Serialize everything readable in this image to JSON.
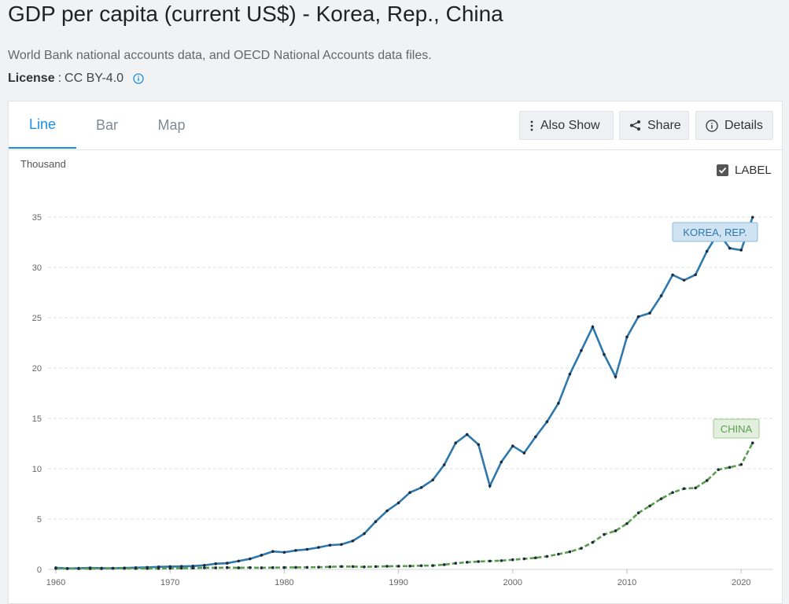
{
  "header": {
    "title": "GDP per capita (current US$) - Korea, Rep., China",
    "source": "World Bank national accounts data, and OECD National Accounts data files.",
    "license_label": "License",
    "license_sep": " : ",
    "license_value": "CC BY-4.0",
    "info_icon": "info-icon"
  },
  "tabs": [
    {
      "label": "Line",
      "active": true
    },
    {
      "label": "Bar",
      "active": false
    },
    {
      "label": "Map",
      "active": false
    }
  ],
  "toolbar": {
    "also_show": "Also Show",
    "share": "Share",
    "details": "Details"
  },
  "label_toggle": {
    "label": "LABEL",
    "checked": true
  },
  "colors": {
    "accent": "#1e8ee0",
    "korea": "#2e78ae",
    "china": "#5a9e4f"
  },
  "chart_data": {
    "type": "line",
    "title": "",
    "xlabel": "",
    "ylabel": "Thousand",
    "xlim": [
      1960,
      2021
    ],
    "ylim": [
      0,
      35
    ],
    "xticks": [
      1960,
      1970,
      1980,
      1990,
      2000,
      2010,
      2020
    ],
    "yticks": [
      0,
      5,
      10,
      15,
      20,
      25,
      30,
      35
    ],
    "grid": true,
    "x": [
      1960,
      1961,
      1962,
      1963,
      1964,
      1965,
      1966,
      1967,
      1968,
      1969,
      1970,
      1971,
      1972,
      1973,
      1974,
      1975,
      1976,
      1977,
      1978,
      1979,
      1980,
      1981,
      1982,
      1983,
      1984,
      1985,
      1986,
      1987,
      1988,
      1989,
      1990,
      1991,
      1992,
      1993,
      1994,
      1995,
      1996,
      1997,
      1998,
      1999,
      2000,
      2001,
      2002,
      2003,
      2004,
      2005,
      2006,
      2007,
      2008,
      2009,
      2010,
      2011,
      2012,
      2013,
      2014,
      2015,
      2016,
      2017,
      2018,
      2019,
      2020,
      2021
    ],
    "series": [
      {
        "name": "KOREA, REP.",
        "color": "#2e78ae",
        "values": [
          0.16,
          0.09,
          0.11,
          0.15,
          0.12,
          0.11,
          0.14,
          0.17,
          0.2,
          0.25,
          0.28,
          0.3,
          0.33,
          0.41,
          0.56,
          0.62,
          0.83,
          1.05,
          1.41,
          1.78,
          1.7,
          1.88,
          1.99,
          2.18,
          2.41,
          2.48,
          2.83,
          3.55,
          4.75,
          5.82,
          6.61,
          7.64,
          8.13,
          8.88,
          10.39,
          12.56,
          13.4,
          12.4,
          8.29,
          10.67,
          12.26,
          11.56,
          13.17,
          14.67,
          16.5,
          19.4,
          21.74,
          24.09,
          21.35,
          19.14,
          23.09,
          25.1,
          25.46,
          27.18,
          29.25,
          28.73,
          29.27,
          31.6,
          33.45,
          31.9,
          31.72,
          34.98
        ]
      },
      {
        "name": "CHINA",
        "color": "#5a9e4f",
        "values": [
          0.09,
          0.08,
          0.07,
          0.07,
          0.08,
          0.1,
          0.1,
          0.09,
          0.09,
          0.09,
          0.11,
          0.12,
          0.13,
          0.16,
          0.16,
          0.18,
          0.16,
          0.18,
          0.16,
          0.18,
          0.19,
          0.2,
          0.2,
          0.22,
          0.25,
          0.29,
          0.28,
          0.25,
          0.28,
          0.31,
          0.32,
          0.33,
          0.37,
          0.38,
          0.47,
          0.61,
          0.71,
          0.78,
          0.83,
          0.87,
          0.96,
          1.05,
          1.15,
          1.29,
          1.51,
          1.75,
          2.1,
          2.69,
          3.47,
          3.83,
          4.55,
          5.61,
          6.3,
          7.02,
          7.64,
          8.02,
          8.09,
          8.82,
          9.91,
          10.14,
          10.41,
          12.56
        ]
      }
    ],
    "series_labels": [
      {
        "text": "KOREA, REP.",
        "series": 0
      },
      {
        "text": "CHINA",
        "series": 1
      }
    ]
  }
}
